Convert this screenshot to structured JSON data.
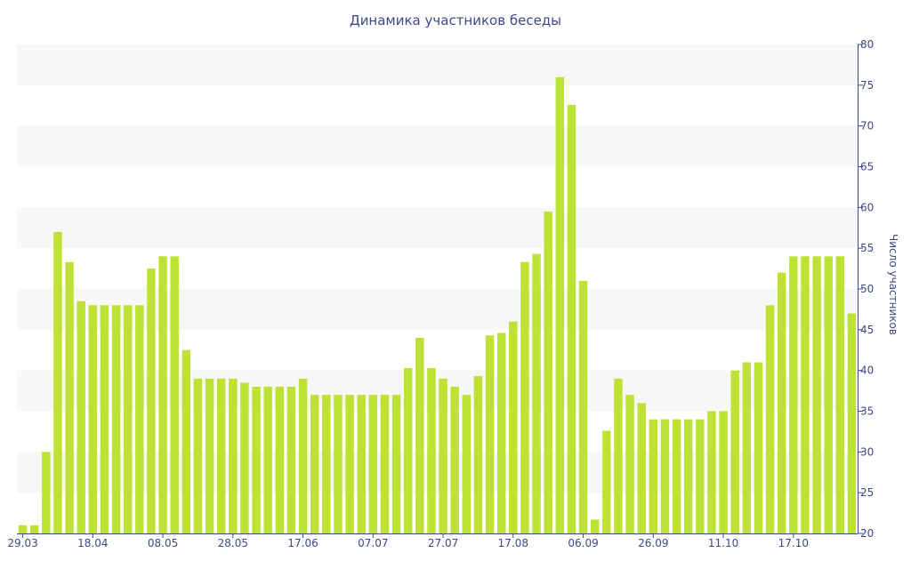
{
  "chart_data": {
    "type": "bar",
    "title": "Динамика участников беседы",
    "xlabel": "",
    "ylabel": "Число участников",
    "ylim": [
      20,
      80
    ],
    "yticks": [
      20,
      25,
      30,
      35,
      40,
      45,
      50,
      55,
      60,
      65,
      70,
      75,
      80
    ],
    "yaxis_position": "right",
    "grid": "horizontal-bands",
    "bar_color": "#bde234",
    "band_color": "#f7f7f7",
    "text_color": "#3b4a8c",
    "values": [
      21,
      21,
      30,
      57,
      53.3,
      48.5,
      48,
      48,
      48,
      48,
      48,
      52.5,
      54,
      54,
      42.5,
      39,
      39,
      39,
      39,
      38.5,
      38,
      38,
      38,
      38,
      39,
      37,
      37,
      37,
      37,
      37,
      37,
      37,
      37,
      40.3,
      44,
      40.3,
      39,
      38,
      37,
      39.3,
      44.3,
      44.6,
      46,
      53.3,
      54.3,
      59.5,
      76,
      72.6,
      51,
      21.7,
      32.6,
      39,
      37,
      36,
      34,
      34,
      34,
      34,
      34,
      35,
      35,
      40,
      41,
      41,
      48,
      52,
      54,
      54,
      54,
      54,
      54,
      47
    ],
    "x_tick_labels": [
      {
        "label": "29.03",
        "index": 0
      },
      {
        "label": "18.04",
        "index": 6
      },
      {
        "label": "08.05",
        "index": 12
      },
      {
        "label": "28.05",
        "index": 18
      },
      {
        "label": "17.06",
        "index": 24
      },
      {
        "label": "07.07",
        "index": 30
      },
      {
        "label": "27.07",
        "index": 36
      },
      {
        "label": "17.08",
        "index": 42
      },
      {
        "label": "06.09",
        "index": 48
      },
      {
        "label": "26.09",
        "index": 54
      },
      {
        "label": "11.10",
        "index": 60
      },
      {
        "label": "17.10",
        "index": 66
      }
    ]
  }
}
